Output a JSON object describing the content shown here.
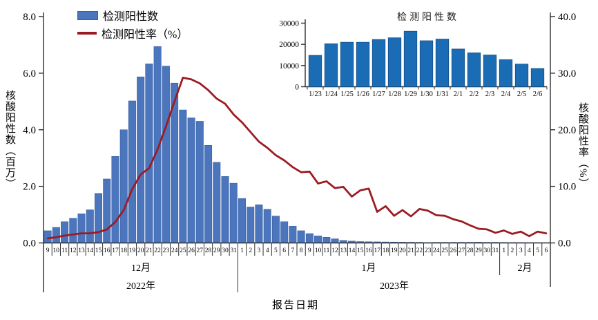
{
  "legend": {
    "bar_label": "检测阳性数",
    "line_label": "检测阳性率（%）"
  },
  "axes": {
    "left_title": "核酸阳性数（百万）",
    "right_title": "核酸阳性率（%）",
    "x_title": "报告日期"
  },
  "chart_data": [
    {
      "type": "bar",
      "combo": "bar+line, dual y-axes",
      "x": [
        "9",
        "10",
        "11",
        "12",
        "13",
        "14",
        "15",
        "16",
        "17",
        "18",
        "19",
        "20",
        "21",
        "22",
        "23",
        "24",
        "25",
        "26",
        "27",
        "28",
        "29",
        "30",
        "31",
        "1",
        "2",
        "3",
        "4",
        "5",
        "6",
        "7",
        "8",
        "9",
        "10",
        "11",
        "12",
        "13",
        "14",
        "15",
        "16",
        "17",
        "18",
        "19",
        "20",
        "21",
        "22",
        "23",
        "24",
        "25",
        "26",
        "27",
        "28",
        "29",
        "30",
        "31",
        "1",
        "2",
        "3",
        "4",
        "5",
        "6"
      ],
      "month_groups": [
        {
          "label": "12月",
          "span": [
            0,
            22
          ]
        },
        {
          "label": "1月",
          "span": [
            23,
            53
          ]
        },
        {
          "label": "2月",
          "span": [
            54,
            59
          ]
        }
      ],
      "year_groups": [
        {
          "label": "2022年",
          "span": [
            0,
            22
          ]
        },
        {
          "label": "2023年",
          "span": [
            23,
            59
          ]
        }
      ],
      "series": [
        {
          "name": "检测阳性数",
          "type": "bar",
          "axis": "left",
          "unit": "百万",
          "values": [
            0.43,
            0.55,
            0.75,
            0.87,
            1.03,
            1.17,
            1.75,
            2.26,
            3.06,
            4.0,
            5.02,
            5.87,
            6.33,
            6.94,
            6.25,
            5.65,
            4.7,
            4.42,
            4.3,
            3.45,
            2.85,
            2.35,
            2.11,
            1.57,
            1.27,
            1.35,
            1.19,
            0.95,
            0.75,
            0.59,
            0.43,
            0.33,
            0.25,
            0.2,
            0.145,
            0.09,
            0.065,
            0.048,
            0.042,
            0.038,
            0.034,
            0.031,
            0.028,
            0.025,
            0.022,
            0.0148,
            0.0203,
            0.021,
            0.021,
            0.0223,
            0.0231,
            0.0262,
            0.0217,
            0.0225,
            0.0178,
            0.016,
            0.015,
            0.0128,
            0.0107,
            0.0086
          ]
        },
        {
          "name": "检测阳性率（%）",
          "type": "line",
          "axis": "right",
          "unit": "%",
          "values": [
            0.8,
            1.0,
            1.3,
            1.5,
            1.7,
            1.7,
            1.9,
            2.4,
            3.7,
            5.8,
            9.5,
            12.1,
            13.2,
            16.5,
            20.6,
            25.0,
            29.2,
            28.9,
            28.2,
            27.0,
            25.5,
            24.6,
            22.7,
            21.3,
            19.6,
            17.9,
            16.8,
            15.5,
            14.6,
            13.4,
            12.5,
            12.6,
            10.5,
            10.9,
            9.7,
            9.9,
            8.2,
            9.3,
            9.6,
            5.5,
            6.5,
            4.8,
            5.8,
            4.7,
            6.0,
            5.7,
            4.9,
            4.8,
            4.2,
            3.8,
            3.1,
            2.5,
            2.4,
            1.8,
            2.2,
            1.6,
            2.0,
            1.2,
            2.0,
            1.7
          ]
        }
      ],
      "ylabel_left": "核酸阳性数（百万）",
      "ylim_left": [
        0,
        8
      ],
      "yticks_left": [
        "0.0",
        "2.0",
        "4.0",
        "6.0",
        "8.0"
      ],
      "ylabel_right": "核酸阳性率（%）",
      "ylim_right": [
        0,
        40
      ],
      "yticks_right": [
        "0.0",
        "10.0",
        "20.0",
        "30.0",
        "40.0"
      ],
      "xlabel": "报告日期",
      "grid": false,
      "legend_position": "top-left"
    },
    {
      "type": "bar",
      "title": "检测阳性数",
      "categories": [
        "1/23",
        "1/24",
        "1/25",
        "1/26",
        "1/27",
        "1/28",
        "1/29",
        "1/30",
        "1/31",
        "2/1",
        "2/2",
        "2/3",
        "2/4",
        "2/5",
        "2/6"
      ],
      "values": [
        14800,
        20300,
        21000,
        21000,
        22300,
        23100,
        26200,
        21700,
        22500,
        17800,
        16000,
        15000,
        12800,
        10700,
        8600
      ],
      "ylim": [
        0,
        30000
      ],
      "yticks": [
        "0",
        "10000",
        "20000",
        "30000"
      ],
      "grid": false
    }
  ],
  "colors": {
    "main_bar_fill": "#4b76bd",
    "main_bar_edge": "#3a5f9e",
    "rate_line": "#9c1b23",
    "inset_bar_fill": "#1a6cb5",
    "inset_bar_edge": "#16497c",
    "axis": "#2e2e2e",
    "text": "#000000"
  }
}
